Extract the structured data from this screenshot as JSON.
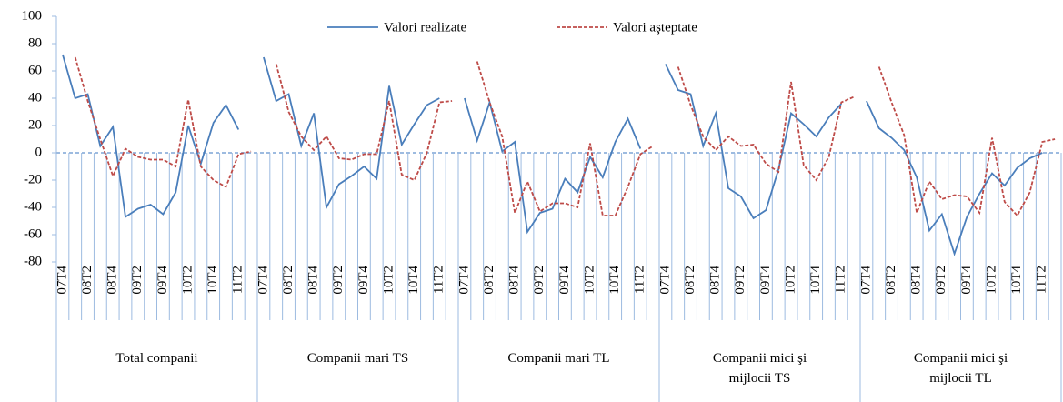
{
  "chart_data": {
    "type": "line",
    "categories": [
      "07T4",
      null,
      "08T2",
      null,
      "08T4",
      null,
      "09T2",
      null,
      "09T4",
      null,
      "10T2",
      null,
      "10T4",
      null,
      "11T2",
      null,
      "07T4",
      null,
      "08T2",
      null,
      "08T4",
      null,
      "09T2",
      null,
      "09T4",
      null,
      "10T2",
      null,
      "10T4",
      null,
      "11T2",
      null,
      "07T4",
      null,
      "08T2",
      null,
      "08T4",
      null,
      "09T2",
      null,
      "09T4",
      null,
      "10T2",
      null,
      "10T4",
      null,
      "11T2",
      null,
      "07T4",
      null,
      "08T2",
      null,
      "08T4",
      null,
      "09T2",
      null,
      "09T4",
      null,
      "10T2",
      null,
      "10T4",
      null,
      "11T2",
      null,
      "07T4",
      null,
      "08T2",
      null,
      "08T4",
      null,
      "09T2",
      null,
      "09T4",
      null,
      "10T2",
      null,
      "10T4",
      null,
      "11T2",
      null
    ],
    "groups": [
      "Total companii",
      "Companii mari TS",
      "Companii mari TL",
      "Companii mici şi mijlocii TS",
      "Companii mici şi mijlocii TL"
    ],
    "series": [
      {
        "name": "Valori realizate",
        "color": "#4a7ebb",
        "dash": false,
        "values": [
          72,
          40,
          43,
          5,
          19,
          -47,
          -41,
          -38,
          -45,
          -29,
          20,
          -8,
          22,
          35,
          17,
          null,
          70,
          38,
          43,
          5,
          29,
          -40,
          -23,
          -17,
          -10,
          -19,
          49,
          6,
          21,
          35,
          40,
          null,
          40,
          9,
          37,
          1,
          8,
          -58,
          -44,
          -41,
          -19,
          -29,
          -3,
          -18,
          8,
          25,
          3,
          null,
          65,
          46,
          43,
          5,
          29,
          -26,
          -32,
          -48,
          -42,
          -12,
          29,
          21,
          12,
          26,
          36,
          null,
          38,
          18,
          11,
          2,
          -18,
          -57,
          -45,
          -74,
          -47,
          -30,
          -15,
          -24,
          -11,
          -4,
          0,
          null
        ]
      },
      {
        "name": "Valori aşteptate",
        "color": "#be4b48",
        "dash": true,
        "values": [
          null,
          70,
          38,
          10,
          -17,
          3,
          -3,
          -5,
          -5,
          -10,
          39,
          -10,
          -20,
          -25,
          -1,
          1,
          null,
          65,
          30,
          12,
          2,
          12,
          -4,
          -5,
          -1,
          -1,
          38,
          -16,
          -20,
          0,
          37,
          38,
          null,
          67,
          37,
          12,
          -44,
          -21,
          -43,
          -37,
          -37,
          -40,
          7,
          -46,
          -46,
          -25,
          -1,
          5,
          null,
          63,
          35,
          12,
          2,
          12,
          5,
          6,
          -8,
          -14,
          52,
          -9,
          -20,
          -3,
          37,
          41,
          null,
          63,
          37,
          13,
          -44,
          -21,
          -34,
          -31,
          -32,
          -44,
          11,
          -36,
          -46,
          -29,
          8,
          10
        ]
      }
    ],
    "ylim": [
      -80,
      100
    ],
    "yticks": [
      -80,
      -60,
      -40,
      -20,
      0,
      20,
      40,
      60,
      80,
      100
    ],
    "grid": false,
    "legend": "top"
  }
}
